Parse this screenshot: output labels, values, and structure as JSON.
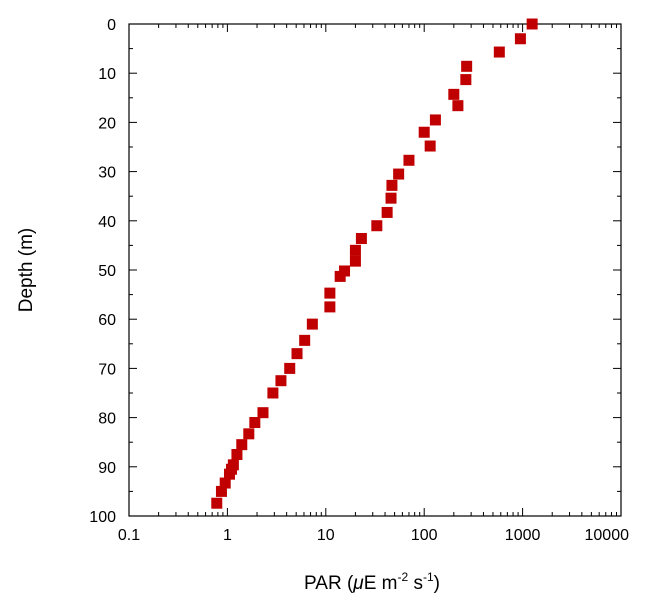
{
  "chart_data": {
    "type": "scatter",
    "xlabel": {
      "main": "PAR (",
      "mu": "μ",
      "unit": "E m",
      "exp1": "-2",
      "mid": " s",
      "exp2": "-1",
      "close": ")"
    },
    "ylabel": "Depth (m)",
    "xscale": "log",
    "xlim": [
      0.1,
      10000
    ],
    "ylim": [
      100,
      0
    ],
    "y_inverted": true,
    "grid": false,
    "xticks": [
      0.1,
      1,
      10,
      100,
      1000,
      10000
    ],
    "xtick_labels": [
      "0.1",
      "1",
      "10",
      "100",
      "1000",
      "10000"
    ],
    "yticks": [
      0,
      10,
      20,
      30,
      40,
      50,
      60,
      70,
      80,
      90,
      100
    ],
    "ytick_labels": [
      "0",
      "10",
      "20",
      "30",
      "40",
      "50",
      "60",
      "70",
      "80",
      "90",
      "100"
    ],
    "marker_color": "#c00000",
    "series": [
      {
        "points": [
          {
            "x": 1250,
            "y": 0
          },
          {
            "x": 950,
            "y": 3
          },
          {
            "x": 580,
            "y": 5.7
          },
          {
            "x": 270,
            "y": 8.6
          },
          {
            "x": 265,
            "y": 11.3
          },
          {
            "x": 200,
            "y": 14.3
          },
          {
            "x": 220,
            "y": 16.6
          },
          {
            "x": 130,
            "y": 19.5
          },
          {
            "x": 100,
            "y": 22
          },
          {
            "x": 115,
            "y": 24.8
          },
          {
            "x": 70,
            "y": 27.7
          },
          {
            "x": 55,
            "y": 30.5
          },
          {
            "x": 47,
            "y": 32.8
          },
          {
            "x": 46,
            "y": 35.4
          },
          {
            "x": 42,
            "y": 38.3
          },
          {
            "x": 33,
            "y": 41
          },
          {
            "x": 23,
            "y": 43.6
          },
          {
            "x": 20,
            "y": 46
          },
          {
            "x": 20,
            "y": 48.2
          },
          {
            "x": 15.5,
            "y": 50.2
          },
          {
            "x": 14,
            "y": 51.3
          },
          {
            "x": 11,
            "y": 54.7
          },
          {
            "x": 11,
            "y": 57.5
          },
          {
            "x": 7.3,
            "y": 61
          },
          {
            "x": 6.1,
            "y": 64.3
          },
          {
            "x": 5.1,
            "y": 67
          },
          {
            "x": 4.3,
            "y": 70
          },
          {
            "x": 3.5,
            "y": 72.5
          },
          {
            "x": 2.9,
            "y": 75
          },
          {
            "x": 2.3,
            "y": 79
          },
          {
            "x": 1.9,
            "y": 81
          },
          {
            "x": 1.65,
            "y": 83.3
          },
          {
            "x": 1.4,
            "y": 85.5
          },
          {
            "x": 1.25,
            "y": 87.5
          },
          {
            "x": 1.15,
            "y": 89.6
          },
          {
            "x": 1.1,
            "y": 90.5
          },
          {
            "x": 1.05,
            "y": 91.5
          },
          {
            "x": 0.95,
            "y": 93.3
          },
          {
            "x": 0.87,
            "y": 95
          },
          {
            "x": 0.78,
            "y": 97.4
          }
        ]
      }
    ]
  }
}
